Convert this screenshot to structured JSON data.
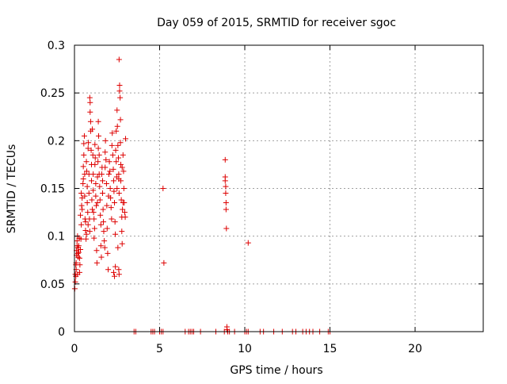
{
  "chart_data": {
    "type": "scatter",
    "title": "Day 059 of 2015, SRMTID for receiver sgoc",
    "xlabel": "GPS time / hours",
    "ylabel": "SRMTID / TECUs",
    "xlim": [
      0,
      24
    ],
    "ylim": [
      0,
      0.3
    ],
    "x_ticks": [
      0,
      5,
      10,
      15,
      20
    ],
    "x_tick_labels": [
      "0",
      "5",
      "10",
      "15",
      "20"
    ],
    "y_ticks": [
      0,
      0.05,
      0.1,
      0.15,
      0.2,
      0.25,
      0.3
    ],
    "y_tick_labels": [
      "0",
      "0.05",
      "0.1",
      "0.15",
      "0.2",
      "0.25",
      "0.3"
    ],
    "grid": true,
    "legend": "none",
    "marker": "plus",
    "color": "#dd0000",
    "series": [
      {
        "name": "SRMTID",
        "points": [
          [
            0.02,
            0.045
          ],
          [
            0.05,
            0.052
          ],
          [
            0.05,
            0.06
          ],
          [
            0.08,
            0.058
          ],
          [
            0.08,
            0.07
          ],
          [
            0.1,
            0.065
          ],
          [
            0.1,
            0.072
          ],
          [
            0.12,
            0.08
          ],
          [
            0.12,
            0.085
          ],
          [
            0.15,
            0.09
          ],
          [
            0.15,
            0.095
          ],
          [
            0.18,
            0.06
          ],
          [
            0.18,
            0.1
          ],
          [
            0.2,
            0.088
          ],
          [
            0.2,
            0.082
          ],
          [
            0.22,
            0.078
          ],
          [
            0.25,
            0.083
          ],
          [
            0.25,
            0.09
          ],
          [
            0.28,
            0.098
          ],
          [
            0.3,
            0.077
          ],
          [
            0.3,
            0.062
          ],
          [
            0.32,
            0.07
          ],
          [
            0.35,
            0.086
          ],
          [
            0.35,
            0.122
          ],
          [
            0.38,
            0.097
          ],
          [
            0.4,
            0.112
          ],
          [
            0.4,
            0.145
          ],
          [
            0.42,
            0.132
          ],
          [
            0.45,
            0.14
          ],
          [
            0.45,
            0.128
          ],
          [
            0.5,
            0.155
          ],
          [
            0.52,
            0.16
          ],
          [
            0.52,
            0.173
          ],
          [
            0.55,
            0.185
          ],
          [
            0.55,
            0.197
          ],
          [
            0.58,
            0.205
          ],
          [
            0.6,
            0.165
          ],
          [
            0.6,
            0.142
          ],
          [
            0.62,
            0.118
          ],
          [
            0.65,
            0.115
          ],
          [
            0.65,
            0.106
          ],
          [
            0.68,
            0.097
          ],
          [
            0.7,
            0.102
          ],
          [
            0.7,
            0.178
          ],
          [
            0.72,
            0.168
          ],
          [
            0.75,
            0.152
          ],
          [
            0.75,
            0.135
          ],
          [
            0.78,
            0.125
          ],
          [
            0.8,
            0.112
          ],
          [
            0.8,
            0.192
          ],
          [
            0.82,
            0.198
          ],
          [
            0.85,
            0.165
          ],
          [
            0.85,
            0.145
          ],
          [
            0.88,
            0.118
          ],
          [
            0.9,
            0.105
          ],
          [
            0.9,
            0.245
          ],
          [
            0.92,
            0.24
          ],
          [
            0.92,
            0.23
          ],
          [
            0.95,
            0.22
          ],
          [
            0.95,
            0.21
          ],
          [
            0.98,
            0.19
          ],
          [
            1.0,
            0.175
          ],
          [
            1.0,
            0.158
          ],
          [
            1.02,
            0.138
          ],
          [
            1.05,
            0.128
          ],
          [
            1.05,
            0.212
          ],
          [
            1.08,
            0.185
          ],
          [
            1.1,
            0.165
          ],
          [
            1.1,
            0.148
          ],
          [
            1.12,
            0.125
          ],
          [
            1.15,
            0.118
          ],
          [
            1.15,
            0.098
          ],
          [
            1.18,
            0.108
          ],
          [
            1.2,
            0.175
          ],
          [
            1.2,
            0.196
          ],
          [
            1.22,
            0.182
          ],
          [
            1.25,
            0.155
          ],
          [
            1.25,
            0.142
          ],
          [
            1.28,
            0.132
          ],
          [
            1.3,
            0.085
          ],
          [
            1.32,
            0.072
          ],
          [
            1.35,
            0.135
          ],
          [
            1.35,
            0.162
          ],
          [
            1.38,
            0.178
          ],
          [
            1.4,
            0.192
          ],
          [
            1.4,
            0.22
          ],
          [
            1.42,
            0.205
          ],
          [
            1.45,
            0.185
          ],
          [
            1.45,
            0.165
          ],
          [
            1.48,
            0.152
          ],
          [
            1.5,
            0.138
          ],
          [
            1.52,
            0.122
          ],
          [
            1.55,
            0.112
          ],
          [
            1.55,
            0.09
          ],
          [
            1.58,
            0.078
          ],
          [
            1.6,
            0.165
          ],
          [
            1.62,
            0.172
          ],
          [
            1.65,
            0.158
          ],
          [
            1.65,
            0.145
          ],
          [
            1.68,
            0.128
          ],
          [
            1.7,
            0.115
          ],
          [
            1.72,
            0.105
          ],
          [
            1.75,
            0.095
          ],
          [
            1.78,
            0.088
          ],
          [
            1.8,
            0.172
          ],
          [
            1.8,
            0.188
          ],
          [
            1.82,
            0.2
          ],
          [
            1.85,
            0.18
          ],
          [
            1.88,
            0.155
          ],
          [
            1.9,
            0.132
          ],
          [
            1.92,
            0.108
          ],
          [
            1.95,
            0.082
          ],
          [
            1.98,
            0.065
          ],
          [
            2.0,
            0.142
          ],
          [
            2.02,
            0.165
          ],
          [
            2.05,
            0.178
          ],
          [
            2.08,
            0.168
          ],
          [
            2.1,
            0.15
          ],
          [
            2.12,
            0.14
          ],
          [
            2.15,
            0.13
          ],
          [
            2.18,
            0.118
          ],
          [
            2.2,
            0.195
          ],
          [
            2.22,
            0.208
          ],
          [
            2.25,
            0.185
          ],
          [
            2.28,
            0.17
          ],
          [
            2.3,
            0.158
          ],
          [
            2.32,
            0.147
          ],
          [
            2.35,
            0.135
          ],
          [
            2.38,
            0.115
          ],
          [
            2.4,
            0.102
          ],
          [
            2.42,
            0.19
          ],
          [
            2.45,
            0.178
          ],
          [
            2.48,
            0.162
          ],
          [
            2.5,
            0.15
          ],
          [
            2.5,
            0.232
          ],
          [
            2.52,
            0.215
          ],
          [
            2.55,
            0.195
          ],
          [
            2.58,
            0.182
          ],
          [
            2.6,
            0.165
          ],
          [
            2.62,
            0.145
          ],
          [
            2.62,
            0.285
          ],
          [
            2.65,
            0.258
          ],
          [
            2.65,
            0.252
          ],
          [
            2.68,
            0.245
          ],
          [
            2.7,
            0.222
          ],
          [
            2.7,
            0.198
          ],
          [
            2.72,
            0.175
          ],
          [
            2.72,
            0.158
          ],
          [
            2.75,
            0.138
          ],
          [
            2.78,
            0.12
          ],
          [
            2.78,
            0.105
          ],
          [
            2.8,
            0.092
          ],
          [
            2.82,
            0.128
          ],
          [
            2.85,
            0.135
          ],
          [
            2.85,
            0.185
          ],
          [
            2.88,
            0.168
          ],
          [
            2.9,
            0.15
          ],
          [
            2.92,
            0.135
          ],
          [
            2.95,
            0.125
          ],
          [
            2.98,
            0.12
          ],
          [
            3.0,
            0.202
          ],
          [
            2.3,
            0.062
          ],
          [
            2.35,
            0.058
          ],
          [
            2.4,
            0.068
          ],
          [
            2.55,
            0.088
          ],
          [
            2.6,
            0.065
          ],
          [
            2.62,
            0.06
          ],
          [
            2.45,
            0.21
          ],
          [
            2.8,
            0.172
          ],
          [
            2.6,
            0.16
          ],
          [
            5.2,
            0.15
          ],
          [
            5.25,
            0.072
          ],
          [
            8.85,
            0.18
          ],
          [
            8.85,
            0.162
          ],
          [
            8.85,
            0.158
          ],
          [
            8.88,
            0.152
          ],
          [
            8.88,
            0.145
          ],
          [
            8.9,
            0.135
          ],
          [
            8.9,
            0.128
          ],
          [
            8.92,
            0.108
          ],
          [
            8.95,
            0.005
          ],
          [
            8.95,
            0.002
          ],
          [
            10.2,
            0.093
          ],
          [
            3.5,
            0.0
          ],
          [
            3.6,
            0.0
          ],
          [
            4.5,
            0.0
          ],
          [
            4.6,
            0.0
          ],
          [
            4.7,
            0.0
          ],
          [
            5.0,
            0.0
          ],
          [
            5.1,
            0.0
          ],
          [
            5.2,
            0.0
          ],
          [
            6.5,
            0.0
          ],
          [
            6.7,
            0.0
          ],
          [
            6.8,
            0.0
          ],
          [
            6.9,
            0.0
          ],
          [
            7.0,
            0.0
          ],
          [
            7.4,
            0.0
          ],
          [
            8.3,
            0.0
          ],
          [
            8.8,
            0.0
          ],
          [
            9.0,
            0.0
          ],
          [
            9.1,
            0.0
          ],
          [
            9.4,
            0.0
          ],
          [
            10.0,
            0.0
          ],
          [
            10.1,
            0.0
          ],
          [
            10.2,
            0.0
          ],
          [
            10.9,
            0.0
          ],
          [
            11.1,
            0.0
          ],
          [
            11.7,
            0.0
          ],
          [
            12.2,
            0.0
          ],
          [
            12.8,
            0.0
          ],
          [
            13.0,
            0.0
          ],
          [
            13.4,
            0.0
          ],
          [
            13.6,
            0.0
          ],
          [
            13.8,
            0.0
          ],
          [
            14.0,
            0.0
          ],
          [
            14.4,
            0.0
          ],
          [
            14.9,
            0.0
          ],
          [
            15.0,
            0.0
          ]
        ]
      }
    ]
  }
}
